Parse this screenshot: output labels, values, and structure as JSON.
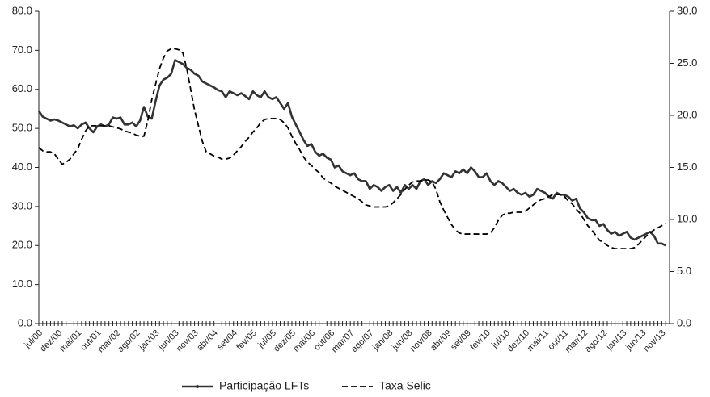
{
  "chart_data": {
    "type": "line",
    "categories": [
      "jul/00",
      null,
      null,
      null,
      null,
      "dez/00",
      null,
      null,
      null,
      null,
      "mai/01",
      null,
      null,
      null,
      null,
      "out/01",
      null,
      null,
      null,
      null,
      "mar/02",
      null,
      null,
      null,
      null,
      "ago/02",
      null,
      null,
      null,
      null,
      "jan/03",
      null,
      null,
      null,
      null,
      "jun/03",
      null,
      null,
      null,
      null,
      "nov/03",
      null,
      null,
      null,
      null,
      "abr/04",
      null,
      null,
      null,
      null,
      "set/04",
      null,
      null,
      null,
      null,
      "fev/05",
      null,
      null,
      null,
      null,
      "jul/05",
      null,
      null,
      null,
      null,
      "dez/05",
      null,
      null,
      null,
      null,
      "mai/06",
      null,
      null,
      null,
      null,
      "out/06",
      null,
      null,
      null,
      null,
      "mar/07",
      null,
      null,
      null,
      null,
      "ago/07",
      null,
      null,
      null,
      null,
      "jan/08",
      null,
      null,
      null,
      null,
      "jun/08",
      null,
      null,
      null,
      null,
      "nov/08",
      null,
      null,
      null,
      null,
      "abr/09",
      null,
      null,
      null,
      null,
      "set/09",
      null,
      null,
      null,
      null,
      "fev/10",
      null,
      null,
      null,
      null,
      "jul/10",
      null,
      null,
      null,
      null,
      "dez/10",
      null,
      null,
      null,
      null,
      "mai/11",
      null,
      null,
      null,
      null,
      "out/11",
      null,
      null,
      null,
      null,
      "mar/12",
      null,
      null,
      null,
      null,
      "ago/12",
      null,
      null,
      null,
      null,
      "jan/13",
      null,
      null,
      null,
      null,
      "jun/13",
      null,
      null,
      null,
      null,
      "nov/13",
      null
    ],
    "series": [
      {
        "name": "Participação LFTs",
        "color": "#333333",
        "dash": false,
        "values": [
          54.5,
          53,
          52.5,
          52,
          52.3,
          52,
          51.5,
          51,
          50.5,
          50.8,
          50,
          51,
          51.5,
          50,
          49,
          50.5,
          51,
          50.5,
          51,
          52.8,
          52.5,
          52.8,
          51,
          51,
          51.5,
          50.5,
          52,
          55.5,
          53,
          52.5,
          57,
          61,
          62.5,
          63,
          64,
          67.5,
          67,
          66.5,
          65.5,
          65,
          64,
          63.5,
          62,
          61.5,
          61,
          60.5,
          59.8,
          59.5,
          58,
          59.5,
          59,
          58.5,
          59,
          58.3,
          57.5,
          59.5,
          58.5,
          58,
          59.5,
          58,
          57.5,
          58,
          56.5,
          55,
          56.5,
          53,
          51,
          49,
          47,
          45.5,
          46,
          44,
          43,
          43.5,
          42.5,
          42,
          40,
          40.5,
          39,
          38.5,
          38,
          38.5,
          37,
          36.5,
          36.5,
          34.5,
          35.5,
          35,
          34,
          35,
          35.5,
          34,
          35,
          33.5,
          35.5,
          34.5,
          35.5,
          34.5,
          36.5,
          37,
          35.5,
          36.5,
          36,
          37,
          38.5,
          38,
          37.5,
          39,
          38.5,
          39.5,
          38.5,
          40,
          39,
          37.5,
          37.5,
          38.5,
          36.5,
          35.5,
          36.5,
          36,
          35,
          34,
          34.5,
          33.5,
          33,
          33.5,
          32.5,
          33,
          34.5,
          34,
          33.5,
          32.5,
          32,
          33.5,
          33,
          33,
          32.5,
          31.5,
          32,
          29.5,
          28.5,
          27,
          26.5,
          26.5,
          25,
          25.5,
          24,
          23,
          23.5,
          22.5,
          23,
          23.5,
          22,
          21.5,
          22,
          22.5,
          23,
          23.5,
          22.5,
          20.5,
          20.5,
          20
        ]
      },
      {
        "name": "Taxa Selic",
        "color": "#000000",
        "dash": true,
        "axis": "y2",
        "values": [
          16.9,
          16.6,
          16.5,
          16.5,
          16.3,
          15.8,
          15.3,
          15.5,
          15.8,
          16.3,
          16.8,
          17.7,
          18.5,
          19,
          19,
          19,
          19,
          19,
          19,
          18.9,
          18.8,
          18.7,
          18.5,
          18.4,
          18.3,
          18.1,
          18,
          18,
          19.5,
          21.5,
          23,
          24.5,
          25.5,
          26.2,
          26.4,
          26.4,
          26.3,
          26,
          24.5,
          22.5,
          20.5,
          19,
          17.5,
          16.5,
          16.3,
          16.1,
          16,
          15.8,
          15.8,
          15.9,
          16.2,
          16.6,
          17,
          17.5,
          17.9,
          18.4,
          18.8,
          19.3,
          19.6,
          19.7,
          19.7,
          19.7,
          19.6,
          19.3,
          18.8,
          18,
          17.3,
          16.7,
          16,
          15.5,
          15.2,
          14.8,
          14.5,
          14,
          13.7,
          13.5,
          13.2,
          13,
          12.8,
          12.6,
          12.4,
          12.2,
          12,
          11.7,
          11.4,
          11.3,
          11.2,
          11.2,
          11.2,
          11.2,
          11.3,
          11.6,
          12,
          12.4,
          12.9,
          13.3,
          13.6,
          13.7,
          13.7,
          13.8,
          13.8,
          13.6,
          12.9,
          11.7,
          10.9,
          10.2,
          9.5,
          9,
          8.7,
          8.6,
          8.6,
          8.6,
          8.6,
          8.6,
          8.6,
          8.6,
          8.7,
          9.2,
          9.9,
          10.4,
          10.6,
          10.6,
          10.7,
          10.7,
          10.7,
          10.8,
          11.1,
          11.4,
          11.7,
          11.9,
          12,
          12.2,
          12.4,
          12.4,
          12.4,
          12.2,
          11.8,
          11.5,
          11,
          10.6,
          10,
          9.4,
          9,
          8.5,
          8,
          7.8,
          7.5,
          7.3,
          7.2,
          7.2,
          7.2,
          7.2,
          7.2,
          7.3,
          7.6,
          8,
          8.4,
          8.7,
          9,
          9.2,
          9.4,
          9.6
        ]
      }
    ],
    "ylim": [
      0,
      80
    ],
    "yticks": [
      {
        "value": 0,
        "label": "0.0"
      },
      {
        "value": 10,
        "label": "10.0"
      },
      {
        "value": 20,
        "label": "20.0"
      },
      {
        "value": 30,
        "label": "30.0"
      },
      {
        "value": 40,
        "label": "40.0"
      },
      {
        "value": 50,
        "label": "50.0"
      },
      {
        "value": 60,
        "label": "60.0"
      },
      {
        "value": 70,
        "label": "70.0"
      },
      {
        "value": 80,
        "label": "80.0"
      }
    ],
    "y2lim": [
      0,
      30
    ],
    "y2ticks": [
      {
        "value": 0,
        "label": "0.0"
      },
      {
        "value": 5,
        "label": "5.0"
      },
      {
        "value": 10,
        "label": "10.0"
      },
      {
        "value": 15,
        "label": "15.0"
      },
      {
        "value": 20,
        "label": "20.0"
      },
      {
        "value": 25,
        "label": "25.0"
      },
      {
        "value": 30,
        "label": "30.0"
      }
    ],
    "legend": "bottom"
  }
}
